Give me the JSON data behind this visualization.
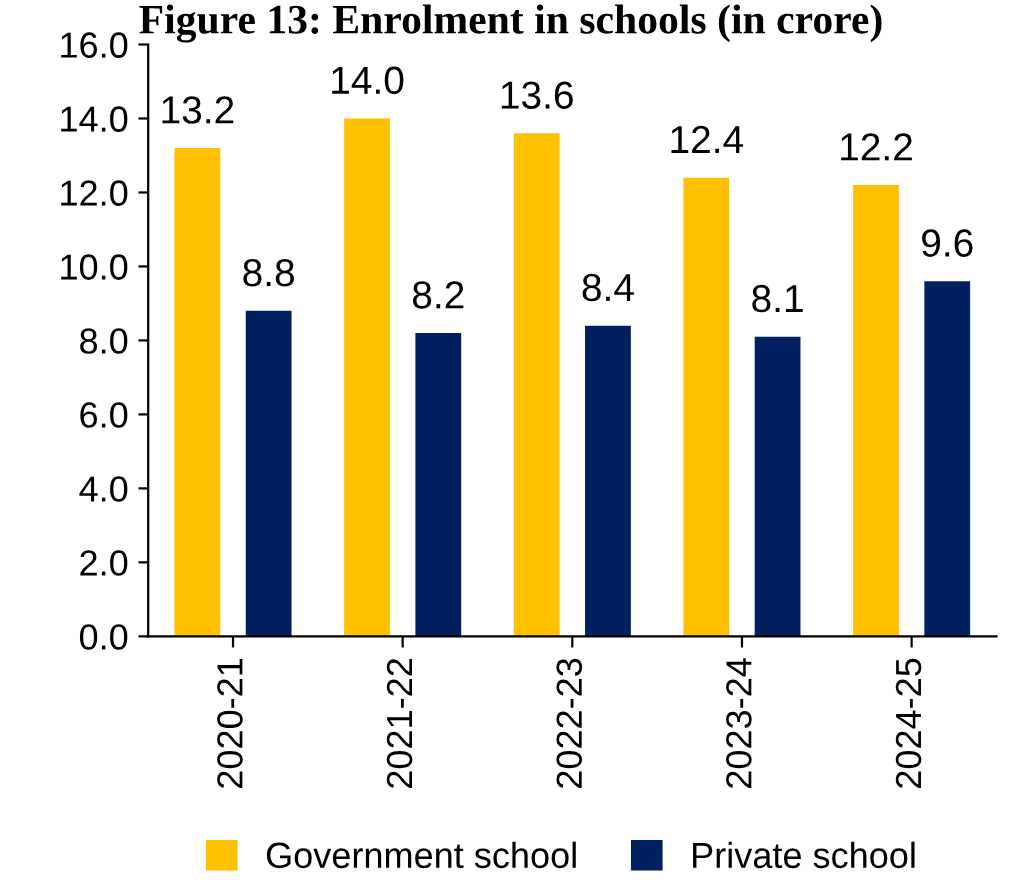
{
  "chart_data": {
    "type": "bar",
    "title": "Figure 13: Enrolment in schools (in crore)",
    "categories": [
      "2020-21",
      "2021-22",
      "2022-23",
      "2023-24",
      "2024-25"
    ],
    "series": [
      {
        "name": "Government school",
        "color": "#ffc000",
        "values": [
          13.2,
          14.0,
          13.6,
          12.4,
          12.2
        ],
        "value_labels": [
          "13.2",
          "14.0",
          "13.6",
          "12.4",
          "12.2"
        ]
      },
      {
        "name": "Private school",
        "color": "#002060",
        "values": [
          8.8,
          8.2,
          8.4,
          8.1,
          9.6
        ],
        "value_labels": [
          "8.8",
          "8.2",
          "8.4",
          "8.1",
          "9.6"
        ]
      }
    ],
    "ylim": [
      0,
      16
    ],
    "yticks": [
      {
        "value": 0,
        "label": "0.0"
      },
      {
        "value": 2,
        "label": "2.0"
      },
      {
        "value": 4,
        "label": "4.0"
      },
      {
        "value": 6,
        "label": "6.0"
      },
      {
        "value": 8,
        "label": "8.0"
      },
      {
        "value": 10,
        "label": "10.0"
      },
      {
        "value": 12,
        "label": "12.0"
      },
      {
        "value": 14,
        "label": "14.0"
      },
      {
        "value": 16,
        "label": "16.0"
      }
    ],
    "grid": false,
    "legend": "bottom"
  }
}
